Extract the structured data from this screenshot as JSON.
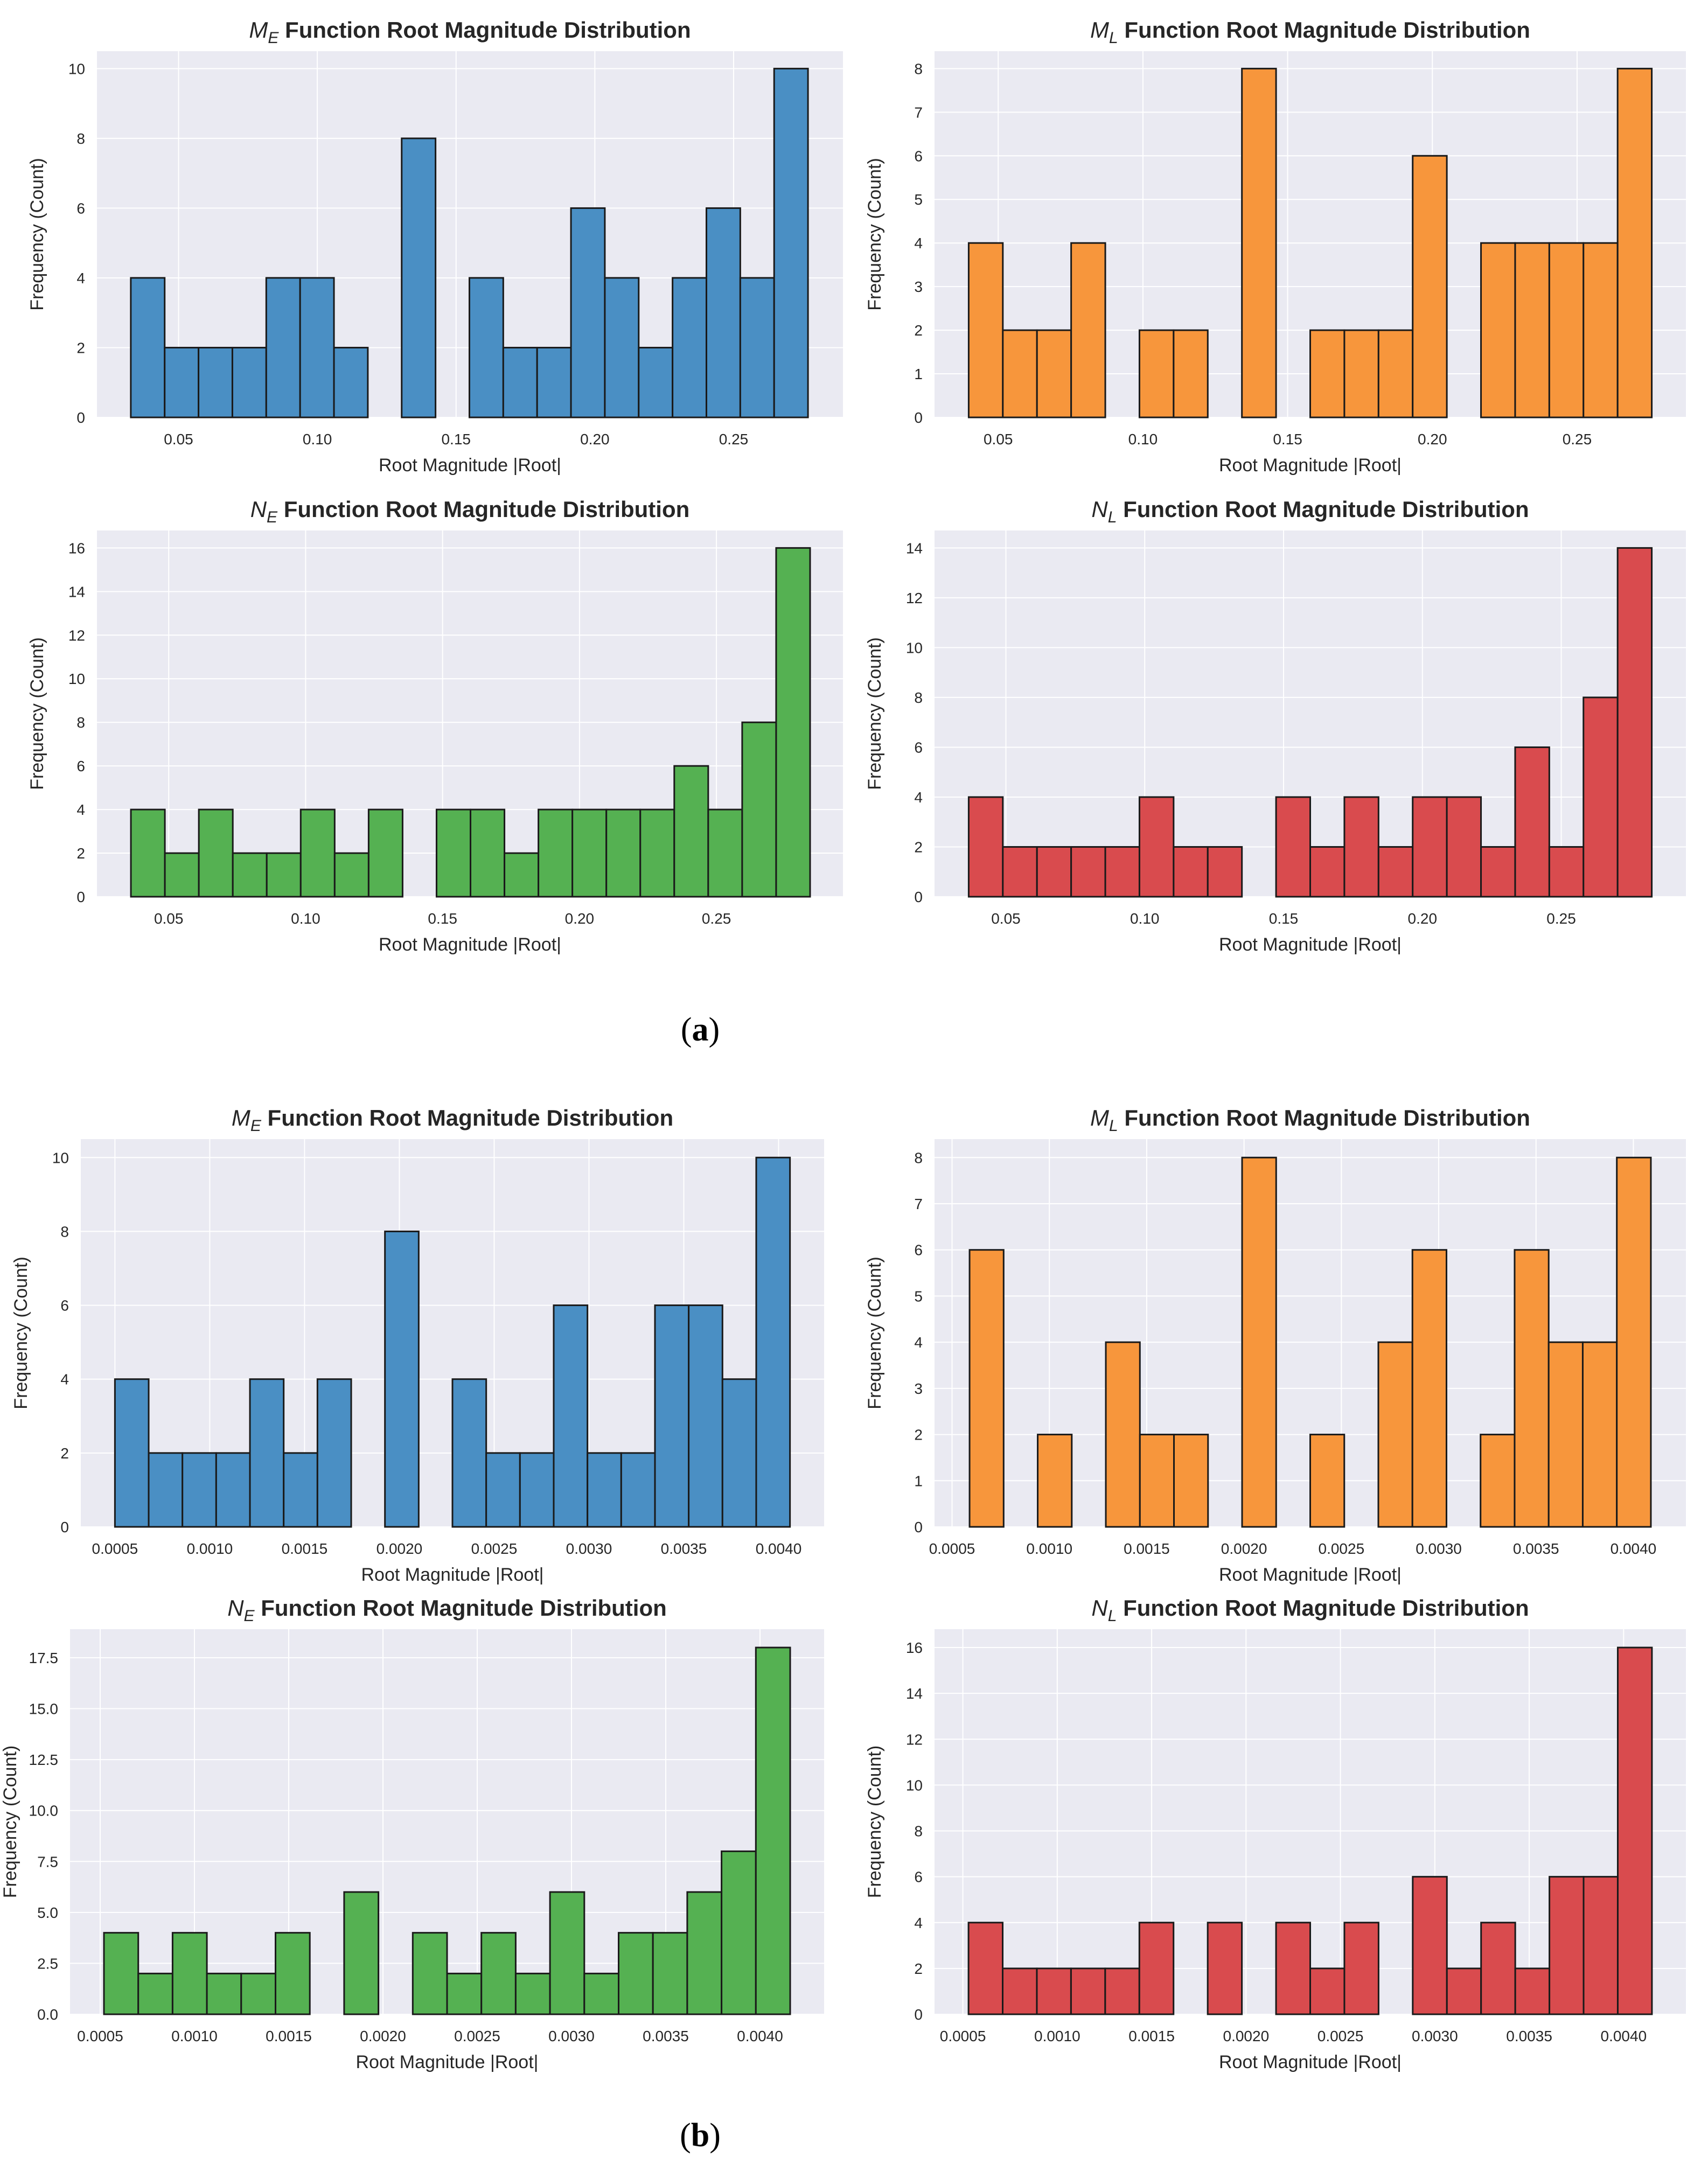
{
  "colors": {
    "ME": "#4a8fc4",
    "ML": "#f7963c",
    "NE": "#55b152",
    "NL": "#d94b4e",
    "plot_bg": "#eaeaf2",
    "grid": "#ffffff",
    "bar_edge": "#1a1a1a"
  },
  "captions": {
    "a": "a",
    "b": "b"
  },
  "chart_data": [
    {
      "id": "a1",
      "type": "bar",
      "colorKey": "ME",
      "title_sym": "M",
      "title_sub": "E",
      "title_rest": "Function Root Magnitude Distribution",
      "xlabel": "Root Magnitude |Root|",
      "ylabel": "Frequency (Count)",
      "bins_start": 0.0328,
      "bin_width": 0.0122,
      "values": [
        4,
        2,
        2,
        2,
        4,
        4,
        2,
        0,
        8,
        0,
        4,
        2,
        2,
        6,
        4,
        2,
        4,
        6,
        4,
        10
      ],
      "xlim": [
        0.0206,
        0.2894
      ],
      "ylim": [
        0,
        10.5
      ],
      "xticks": [
        0.05,
        0.1,
        0.15,
        0.2,
        0.25
      ],
      "xtick_labels": [
        "0.05",
        "0.10",
        "0.15",
        "0.20",
        "0.25"
      ],
      "yticks": [
        0,
        2,
        4,
        6,
        8,
        10
      ],
      "ytick_labels": [
        "0",
        "2",
        "4",
        "6",
        "8",
        "10"
      ]
    },
    {
      "id": "a2",
      "type": "bar",
      "colorKey": "ML",
      "title_sym": "M",
      "title_sub": "L",
      "title_rest": "Function Root Magnitude Distribution",
      "xlabel": "Root Magnitude |Root|",
      "ylabel": "Frequency (Count)",
      "bins_start": 0.0398,
      "bin_width": 0.0118,
      "values": [
        4,
        2,
        2,
        4,
        0,
        2,
        2,
        0,
        8,
        0,
        2,
        2,
        2,
        6,
        0,
        4,
        4,
        4,
        4,
        8
      ],
      "xlim": [
        0.028,
        0.2876
      ],
      "ylim": [
        0,
        8.4
      ],
      "xticks": [
        0.05,
        0.1,
        0.15,
        0.2,
        0.25
      ],
      "xtick_labels": [
        "0.05",
        "0.10",
        "0.15",
        "0.20",
        "0.25"
      ],
      "yticks": [
        0,
        1,
        2,
        3,
        4,
        5,
        6,
        7,
        8
      ],
      "ytick_labels": [
        "0",
        "1",
        "2",
        "3",
        "4",
        "5",
        "6",
        "7",
        "8"
      ]
    },
    {
      "id": "a3",
      "type": "bar",
      "colorKey": "NE",
      "title_sym": "N",
      "title_sub": "E",
      "title_rest": "Function Root Magnitude Distribution",
      "xlabel": "Root Magnitude |Root|",
      "ylabel": "Frequency (Count)",
      "bins_start": 0.0362,
      "bin_width": 0.0124,
      "values": [
        4,
        2,
        4,
        2,
        2,
        4,
        2,
        4,
        0,
        4,
        4,
        2,
        4,
        4,
        4,
        4,
        6,
        4,
        8,
        16
      ],
      "xlim": [
        0.0238,
        0.2962
      ],
      "ylim": [
        0,
        16.8
      ],
      "xticks": [
        0.05,
        0.1,
        0.15,
        0.2,
        0.25
      ],
      "xtick_labels": [
        "0.05",
        "0.10",
        "0.15",
        "0.20",
        "0.25"
      ],
      "yticks": [
        0,
        2,
        4,
        6,
        8,
        10,
        12,
        14,
        16
      ],
      "ytick_labels": [
        "0",
        "2",
        "4",
        "6",
        "8",
        "10",
        "12",
        "14",
        "16"
      ]
    },
    {
      "id": "a4",
      "type": "bar",
      "colorKey": "NL",
      "title_sym": "N",
      "title_sub": "L",
      "title_rest": "Function Root Magnitude Distribution",
      "xlabel": "Root Magnitude |Root|",
      "ylabel": "Frequency (Count)",
      "bins_start": 0.0366,
      "bin_width": 0.0123,
      "values": [
        4,
        2,
        2,
        2,
        2,
        4,
        2,
        2,
        0,
        4,
        2,
        4,
        2,
        4,
        4,
        2,
        6,
        2,
        8,
        14
      ],
      "xlim": [
        0.0243,
        0.2949
      ],
      "ylim": [
        0,
        14.7
      ],
      "xticks": [
        0.05,
        0.1,
        0.15,
        0.2,
        0.25
      ],
      "xtick_labels": [
        "0.05",
        "0.10",
        "0.15",
        "0.20",
        "0.25"
      ],
      "yticks": [
        0,
        2,
        4,
        6,
        8,
        10,
        12,
        14
      ],
      "ytick_labels": [
        "0",
        "2",
        "4",
        "6",
        "8",
        "10",
        "12",
        "14"
      ]
    },
    {
      "id": "b1",
      "type": "bar",
      "colorKey": "ME",
      "title_sym": "M",
      "title_sub": "E",
      "title_rest": "Function Root Magnitude Distribution",
      "xlabel": "Root Magnitude |Root|",
      "ylabel": "Frequency (Count)",
      "bins_start": 0.0005,
      "bin_width": 0.000178,
      "values": [
        4,
        2,
        2,
        2,
        4,
        2,
        4,
        0,
        8,
        0,
        4,
        2,
        2,
        6,
        2,
        2,
        6,
        6,
        4,
        10
      ],
      "xlim": [
        0.00032,
        0.00424
      ],
      "ylim": [
        0,
        10.5
      ],
      "xticks": [
        0.0005,
        0.001,
        0.0015,
        0.002,
        0.0025,
        0.003,
        0.0035,
        0.004
      ],
      "xtick_labels": [
        "0.0005",
        "0.0010",
        "0.0015",
        "0.0020",
        "0.0025",
        "0.0030",
        "0.0035",
        "0.0040"
      ],
      "yticks": [
        0,
        2,
        4,
        6,
        8,
        10
      ],
      "ytick_labels": [
        "0",
        "2",
        "4",
        "6",
        "8",
        "10"
      ]
    },
    {
      "id": "b2",
      "type": "bar",
      "colorKey": "ML",
      "title_sym": "M",
      "title_sub": "L",
      "title_rest": "Function Root Magnitude Distribution",
      "xlabel": "Root Magnitude |Root|",
      "ylabel": "Frequency (Count)",
      "bins_start": 0.00059,
      "bin_width": 0.000175,
      "values": [
        6,
        0,
        2,
        0,
        4,
        2,
        2,
        0,
        8,
        0,
        2,
        0,
        4,
        6,
        0,
        2,
        6,
        4,
        4,
        8
      ],
      "xlim": [
        0.00041,
        0.00427
      ],
      "ylim": [
        0,
        8.4
      ],
      "xticks": [
        0.0005,
        0.001,
        0.0015,
        0.002,
        0.0025,
        0.003,
        0.0035,
        0.004
      ],
      "xtick_labels": [
        "0.0005",
        "0.0010",
        "0.0015",
        "0.0020",
        "0.0025",
        "0.0030",
        "0.0035",
        "0.0040"
      ],
      "yticks": [
        0,
        1,
        2,
        3,
        4,
        5,
        6,
        7,
        8
      ],
      "ytick_labels": [
        "0",
        "1",
        "2",
        "3",
        "4",
        "5",
        "6",
        "7",
        "8"
      ]
    },
    {
      "id": "b3",
      "type": "bar",
      "colorKey": "NE",
      "title_sym": "N",
      "title_sub": "E",
      "title_rest": "Function Root Magnitude Distribution",
      "xlabel": "Root Magnitude |Root|",
      "ylabel": "Frequency (Count)",
      "bins_start": 0.00052,
      "bin_width": 0.000182,
      "values": [
        4,
        2,
        4,
        2,
        2,
        4,
        0,
        6,
        0,
        4,
        2,
        4,
        2,
        6,
        2,
        4,
        4,
        6,
        8,
        18
      ],
      "xlim": [
        0.00034,
        0.00434
      ],
      "ylim": [
        0,
        18.9
      ],
      "xticks": [
        0.0005,
        0.001,
        0.0015,
        0.002,
        0.0025,
        0.003,
        0.0035,
        0.004
      ],
      "xtick_labels": [
        "0.0005",
        "0.0010",
        "0.0015",
        "0.0020",
        "0.0025",
        "0.0030",
        "0.0035",
        "0.0040"
      ],
      "yticks": [
        0,
        2.5,
        5,
        7.5,
        10,
        12.5,
        15,
        17.5
      ],
      "ytick_labels": [
        "0.0",
        "2.5",
        "5.0",
        "7.5",
        "10.0",
        "12.5",
        "15.0",
        "17.5"
      ]
    },
    {
      "id": "b4",
      "type": "bar",
      "colorKey": "NL",
      "title_sym": "N",
      "title_sub": "L",
      "title_rest": "Function Root Magnitude Distribution",
      "xlabel": "Root Magnitude |Root|",
      "ylabel": "Frequency (Count)",
      "bins_start": 0.00053,
      "bin_width": 0.000181,
      "values": [
        4,
        2,
        2,
        2,
        2,
        4,
        0,
        4,
        0,
        4,
        2,
        4,
        0,
        6,
        2,
        4,
        2,
        6,
        6,
        16
      ],
      "xlim": [
        0.00035,
        0.00433
      ],
      "ylim": [
        0,
        16.8
      ],
      "xticks": [
        0.0005,
        0.001,
        0.0015,
        0.002,
        0.0025,
        0.003,
        0.0035,
        0.004
      ],
      "xtick_labels": [
        "0.0005",
        "0.0010",
        "0.0015",
        "0.0020",
        "0.0025",
        "0.0030",
        "0.0035",
        "0.0040"
      ],
      "yticks": [
        0,
        2,
        4,
        6,
        8,
        10,
        12,
        14,
        16
      ],
      "ytick_labels": [
        "0",
        "2",
        "4",
        "6",
        "8",
        "10",
        "12",
        "14",
        "16"
      ]
    }
  ]
}
